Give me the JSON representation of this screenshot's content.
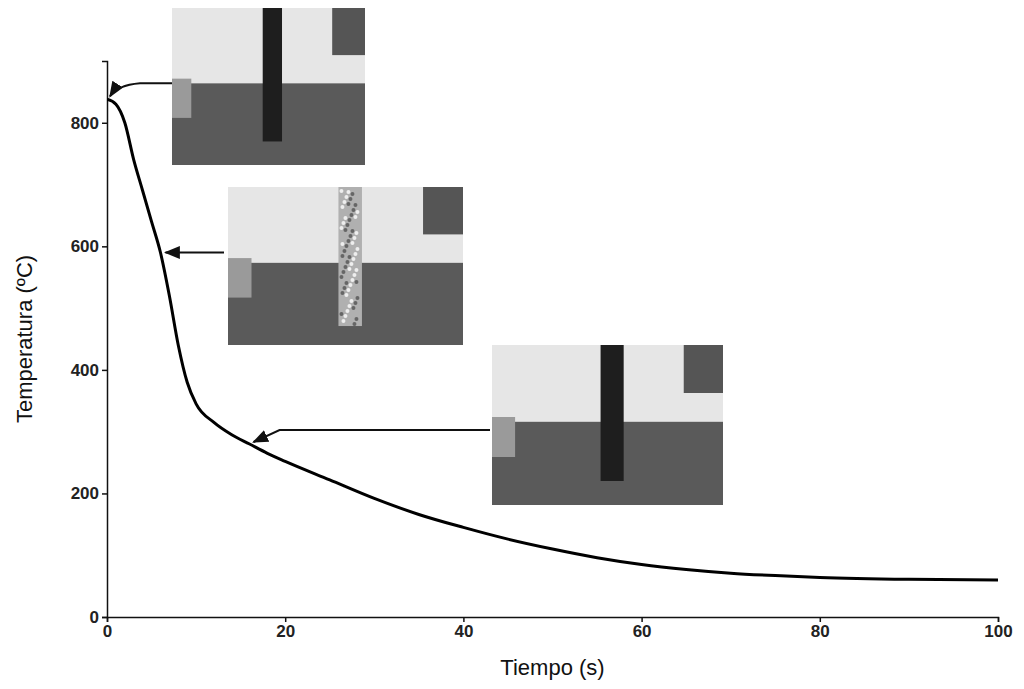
{
  "chart_data": {
    "type": "line",
    "xlabel": "Tiempo (s)",
    "ylabel": "Temperatura (ºC)",
    "x": [
      0,
      1,
      2,
      3,
      4,
      5,
      6,
      7,
      8,
      9,
      10,
      12,
      14,
      16,
      18,
      20,
      25,
      30,
      35,
      40,
      45,
      50,
      55,
      60,
      65,
      70,
      75,
      80,
      90,
      100
    ],
    "values": [
      838,
      830,
      800,
      740,
      690,
      640,
      590,
      520,
      440,
      380,
      345,
      315,
      295,
      280,
      265,
      252,
      222,
      192,
      166,
      145,
      126,
      110,
      96,
      85,
      77,
      71,
      67,
      64,
      61,
      60
    ],
    "color": "#000000",
    "xlim": [
      0,
      100
    ],
    "ylim": [
      0,
      900
    ],
    "xticks": [
      0,
      20,
      40,
      60,
      80,
      100
    ],
    "yticks": [
      0,
      200,
      400,
      600,
      800
    ]
  }
}
